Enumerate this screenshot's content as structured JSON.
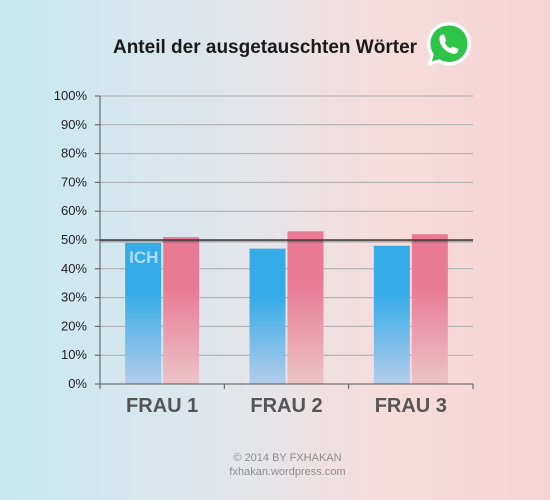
{
  "chart_data": {
    "type": "bar",
    "title": "Anteil der ausgetauschten Wörter",
    "categories": [
      "FRAU 1",
      "FRAU 2",
      "FRAU 3"
    ],
    "series": [
      {
        "name": "ICH",
        "values": [
          49,
          47,
          48
        ],
        "color": "#35abe8"
      },
      {
        "values": [
          51,
          53,
          52
        ],
        "color": "#e87a96"
      }
    ],
    "y_ticks": [
      "0%",
      "10%",
      "20%",
      "30%",
      "40%",
      "50%",
      "60%",
      "70%",
      "80%",
      "90%",
      "100%"
    ],
    "ylim": [
      0,
      100
    ],
    "reference_line": 50,
    "grid": true,
    "xlabel": "",
    "ylabel": ""
  },
  "icon": "whatsapp-icon",
  "footer": {
    "copyright": "© 2014 BY FXHAKAN",
    "site": "fxhakan.wordpress.com"
  }
}
